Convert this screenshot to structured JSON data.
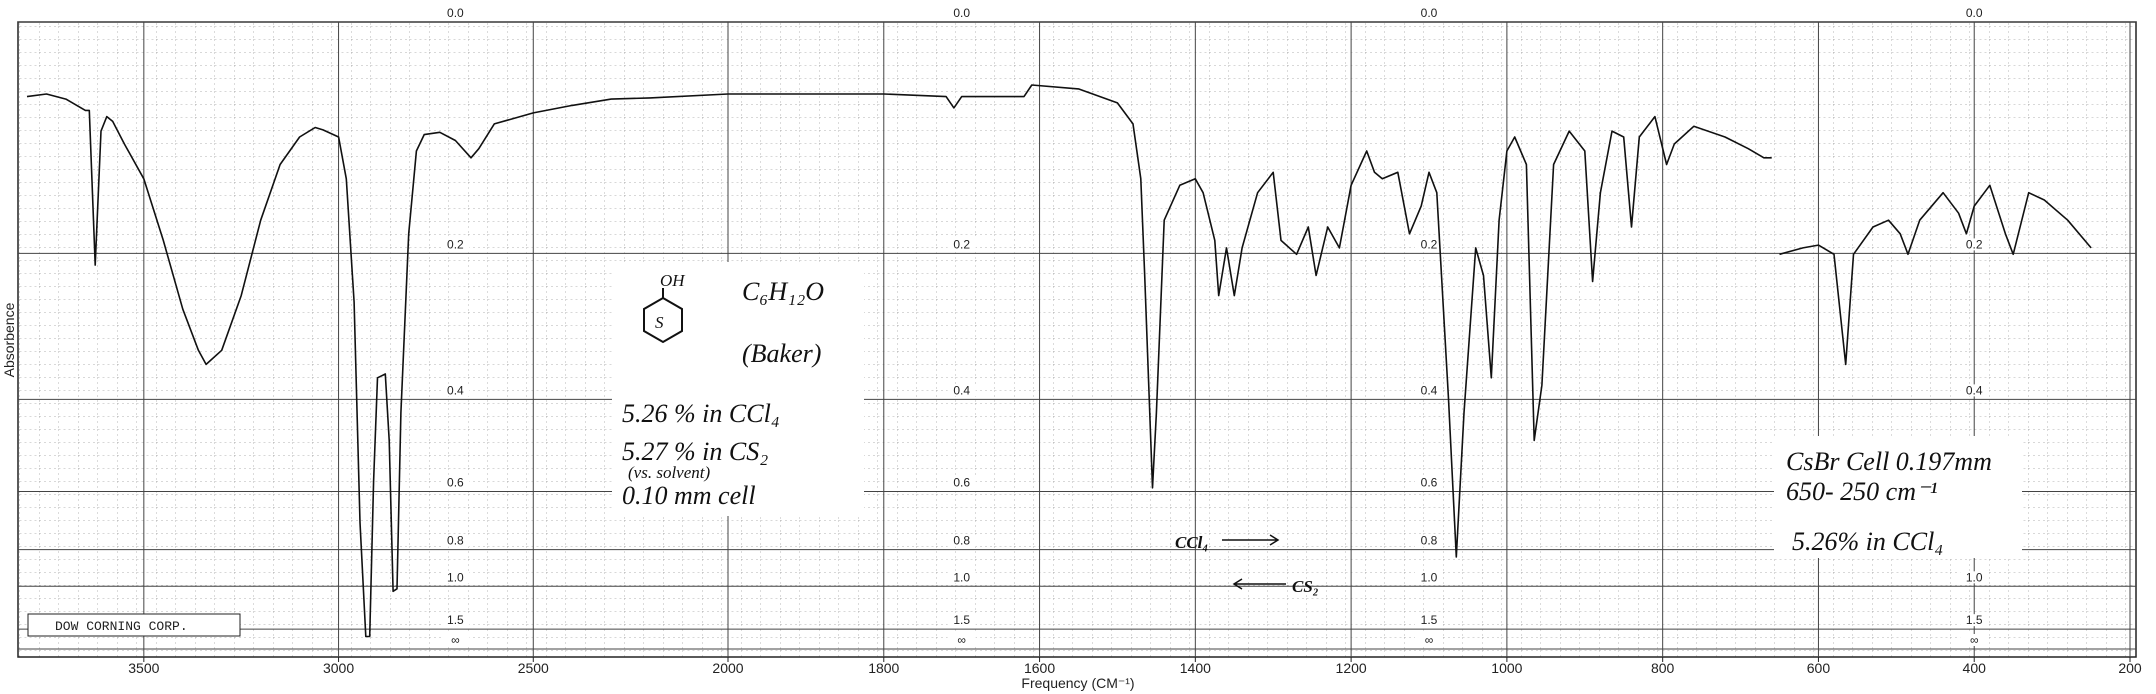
{
  "chart_data": {
    "type": "line",
    "y_label": "Absorbence",
    "x_label": "Frequency (CM⁻¹)",
    "footer_label": "DOW CORNING CORP.",
    "xlim": [
      3800,
      200
    ],
    "x_scale_change_at": 2000,
    "xticks": [
      3500,
      3000,
      2500,
      2000,
      1800,
      1600,
      1400,
      1200,
      1000,
      800,
      600,
      400,
      200
    ],
    "yscale": "absorbance",
    "ylim": [
      0,
      "Infinity"
    ],
    "yticks": [
      {
        "value": 0,
        "label": "0.0"
      },
      0.2,
      0.4,
      0.6,
      0.8,
      {
        "value": 1,
        "label": "1.0"
      },
      1.5,
      {
        "value": "Infinity",
        "label": "∞"
      }
    ],
    "ytick_label_x": [
      2700,
      1700,
      1100,
      400
    ],
    "grid": true,
    "color": "#111111",
    "x": [
      3800,
      3750,
      3700,
      3650,
      3640,
      3625,
      3610,
      3595,
      3580,
      3550,
      3500,
      3450,
      3400,
      3360,
      3340,
      3300,
      3250,
      3200,
      3150,
      3100,
      3060,
      3040,
      3000,
      2980,
      2960,
      2945,
      2930,
      2920,
      2910,
      2900,
      2880,
      2870,
      2860,
      2850,
      2840,
      2820,
      2800,
      2780,
      2740,
      2700,
      2660,
      2640,
      2600,
      2500,
      2400,
      2300,
      2200,
      2000,
      1800,
      1720,
      1710,
      1700,
      1620,
      1610,
      1550,
      1500,
      1480,
      1470,
      1465,
      1455,
      1450,
      1440,
      1420,
      1400,
      1390,
      1375,
      1370,
      1360,
      1350,
      1340,
      1320,
      1300,
      1290,
      1270,
      1255,
      1245,
      1230,
      1215,
      1200,
      1180,
      1170,
      1160,
      1140,
      1125,
      1110,
      1100,
      1090,
      1075,
      1065,
      1055,
      1040,
      1030,
      1020,
      1010,
      1000,
      990,
      975,
      965,
      955,
      940,
      920,
      900,
      890,
      880,
      865,
      850,
      840,
      830,
      810,
      795,
      785,
      760,
      720,
      690,
      670,
      660,
      655,
      650,
      620,
      600,
      580,
      565,
      555,
      530,
      510,
      495,
      485,
      470,
      440,
      420,
      410,
      400,
      380,
      360,
      350,
      330,
      310,
      280,
      250
    ],
    "values": [
      0.055,
      0.053,
      0.057,
      0.066,
      0.066,
      0.213,
      0.083,
      0.071,
      0.075,
      0.094,
      0.125,
      0.186,
      0.266,
      0.322,
      0.343,
      0.322,
      0.249,
      0.165,
      0.112,
      0.088,
      0.08,
      0.082,
      0.088,
      0.125,
      0.257,
      0.695,
      1.7,
      1.7,
      0.572,
      0.364,
      0.358,
      0.478,
      1.036,
      1.018,
      0.424,
      0.179,
      0.1,
      0.086,
      0.084,
      0.091,
      0.106,
      0.098,
      0.077,
      0.068,
      0.062,
      0.057,
      0.056,
      0.053,
      0.053,
      0.055,
      0.064,
      0.055,
      0.055,
      0.046,
      0.049,
      0.06,
      0.077,
      0.125,
      0.225,
      0.59,
      0.424,
      0.165,
      0.131,
      0.125,
      0.138,
      0.186,
      0.249,
      0.194,
      0.249,
      0.194,
      0.138,
      0.119,
      0.186,
      0.201,
      0.172,
      0.225,
      0.172,
      0.194,
      0.131,
      0.1,
      0.119,
      0.125,
      0.119,
      0.179,
      0.151,
      0.119,
      0.138,
      0.399,
      0.833,
      0.424,
      0.194,
      0.225,
      0.364,
      0.165,
      0.1,
      0.088,
      0.112,
      0.478,
      0.376,
      0.112,
      0.083,
      0.1,
      0.232,
      0.138,
      0.083,
      0.088,
      0.172,
      0.088,
      0.071,
      0.112,
      0.094,
      0.079,
      0.088,
      0.098,
      0.106,
      0.106,
      null,
      0.201,
      0.194,
      0.191,
      0.201,
      0.343,
      0.201,
      0.172,
      0.165,
      0.179,
      0.201,
      0.165,
      0.138,
      0.158,
      0.179,
      0.151,
      0.131,
      0.179,
      0.201,
      0.138,
      0.145,
      0.165,
      0.194
    ],
    "annotations": [
      "OH",
      "S",
      "C₆H₁₂O",
      "(Baker)",
      "5.26 % in CCl₄",
      "5.27 % in CS₂",
      "(vs. solvent)",
      "0.10 mm cell",
      "CsBr Cell 0.197mm",
      "650- 250 cm⁻¹",
      "5.26% in CCl₄",
      "CCl₄",
      "CS₂"
    ]
  }
}
